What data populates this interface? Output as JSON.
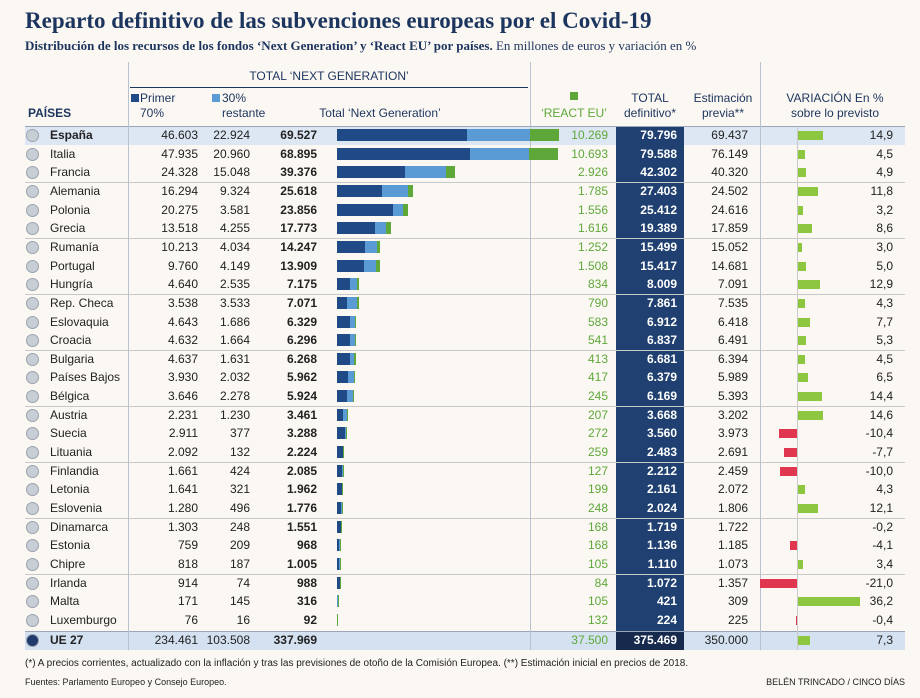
{
  "chart_data": {
    "type": "bar-table",
    "title": "Reparto definitivo de las subvenciones europeas por el Covid-19",
    "subtitle_bold": "Distribución de los recursos de los fondos ‘Next Generation’ y ‘React EU’ por países.",
    "subtitle": "En millones de euros y variación en %",
    "category_header": "PAÍSES",
    "group_header": "TOTAL ‘NEXT GENERATION’",
    "categories": [
      "España",
      "Italia",
      "Francia",
      "Alemania",
      "Polonia",
      "Grecia",
      "Rumanía",
      "Portugal",
      "Hungría",
      "Rep. Checa",
      "Eslovaquia",
      "Croacia",
      "Bulgaria",
      "Países Bajos",
      "Bélgica",
      "Austria",
      "Suecia",
      "Lituania",
      "Finlandia",
      "Letonia",
      "Eslovenia",
      "Dinamarca",
      "Estonia",
      "Chipre",
      "Irlanda",
      "Malta",
      "Luxemburgo"
    ],
    "series": [
      {
        "name": "Primer 70%",
        "color": "#1f4a85",
        "values": [
          46603,
          47935,
          24328,
          16294,
          20275,
          13518,
          10213,
          9760,
          4640,
          3538,
          4643,
          4632,
          4637,
          3930,
          3646,
          2231,
          2911,
          2092,
          1661,
          1641,
          1280,
          1303,
          759,
          818,
          914,
          171,
          76
        ],
        "value_labels": [
          "46.603",
          "47.935",
          "24.328",
          "16.294",
          "20.275",
          "13.518",
          "10.213",
          "9.760",
          "4.640",
          "3.538",
          "4.643",
          "4.632",
          "4.637",
          "3.930",
          "3.646",
          "2.231",
          "2.911",
          "2.092",
          "1.661",
          "1.641",
          "1.280",
          "1.303",
          "759",
          "818",
          "914",
          "171",
          "76"
        ]
      },
      {
        "name": "30% restante",
        "color": "#5b9bd5",
        "values": [
          22924,
          20960,
          15048,
          9324,
          3581,
          4255,
          4034,
          4149,
          2535,
          3533,
          1686,
          1664,
          1631,
          2032,
          2278,
          1230,
          377,
          132,
          424,
          321,
          496,
          248,
          209,
          187,
          74,
          145,
          16
        ],
        "value_labels": [
          "22.924",
          "20.960",
          "15.048",
          "9.324",
          "3.581",
          "4.255",
          "4.034",
          "4.149",
          "2.535",
          "3.533",
          "1.686",
          "1.664",
          "1.631",
          "2.032",
          "2.278",
          "1.230",
          "377",
          "132",
          "424",
          "321",
          "496",
          "248",
          "209",
          "187",
          "74",
          "145",
          "16"
        ]
      },
      {
        "name": "Total ‘Next Generation’",
        "values": [
          69527,
          68895,
          39376,
          25618,
          23856,
          17773,
          14247,
          13909,
          7175,
          7071,
          6329,
          6296,
          6268,
          5962,
          5924,
          3461,
          3288,
          2224,
          2085,
          1962,
          1776,
          1551,
          968,
          1005,
          988,
          316,
          92
        ],
        "value_labels": [
          "69.527",
          "68.895",
          "39.376",
          "25.618",
          "23.856",
          "17.773",
          "14.247",
          "13.909",
          "7.175",
          "7.071",
          "6.329",
          "6.296",
          "6.268",
          "5.962",
          "5.924",
          "3.461",
          "3.288",
          "2.224",
          "2.085",
          "1.962",
          "1.776",
          "1.551",
          "968",
          "1.005",
          "988",
          "316",
          "92"
        ]
      },
      {
        "name": "‘REACT EU’",
        "color": "#5ea83a",
        "values": [
          10269,
          10693,
          2926,
          1785,
          1556,
          1616,
          1252,
          1508,
          834,
          790,
          583,
          541,
          413,
          417,
          245,
          207,
          272,
          259,
          127,
          199,
          248,
          168,
          168,
          105,
          84,
          105,
          132
        ],
        "value_labels": [
          "10.269",
          "10.693",
          "2.926",
          "1.785",
          "1.556",
          "1.616",
          "1.252",
          "1.508",
          "834",
          "790",
          "583",
          "541",
          "413",
          "417",
          "245",
          "207",
          "272",
          "259",
          "127",
          "199",
          "248",
          "168",
          "168",
          "105",
          "84",
          "105",
          "132"
        ]
      },
      {
        "name": "TOTAL definitivo*",
        "values": [
          79796,
          79588,
          42302,
          27403,
          25412,
          19389,
          15499,
          15417,
          8009,
          7861,
          6912,
          6837,
          6681,
          6379,
          6169,
          3668,
          3560,
          2483,
          2212,
          2161,
          2024,
          1719,
          1136,
          1110,
          1072,
          421,
          224
        ],
        "value_labels": [
          "79.796",
          "79.588",
          "42.302",
          "27.403",
          "25.412",
          "19.389",
          "15.499",
          "15.417",
          "8.009",
          "7.861",
          "6.912",
          "6.837",
          "6.681",
          "6.379",
          "6.169",
          "3.668",
          "3.560",
          "2.483",
          "2.212",
          "2.161",
          "2.024",
          "1.719",
          "1.136",
          "1.110",
          "1.072",
          "421",
          "224"
        ]
      },
      {
        "name": "Estimación previa**",
        "values": [
          69437,
          76149,
          40320,
          24502,
          24616,
          17859,
          15052,
          14681,
          7091,
          7535,
          6418,
          6491,
          6394,
          5989,
          5393,
          3202,
          3973,
          2691,
          2459,
          2072,
          1806,
          1722,
          1185,
          1073,
          1357,
          309,
          225
        ],
        "value_labels": [
          "69.437",
          "76.149",
          "40.320",
          "24.502",
          "24.616",
          "17.859",
          "15.052",
          "14.681",
          "7.091",
          "7.535",
          "6.418",
          "6.491",
          "6.394",
          "5.989",
          "5.393",
          "3.202",
          "3.973",
          "2.691",
          "2.459",
          "2.072",
          "1.806",
          "1.722",
          "1.185",
          "1.073",
          "1.357",
          "309",
          "225"
        ]
      },
      {
        "name": "VARIACIÓN En % sobre lo previsto",
        "color": "#8dc63f",
        "negative_color": "#e0364f",
        "values": [
          14.9,
          4.5,
          4.9,
          11.8,
          3.2,
          8.6,
          3,
          5,
          12.9,
          4.3,
          7.7,
          5.3,
          4.5,
          6.5,
          14.4,
          14.6,
          -10.4,
          -7.7,
          -10,
          4.3,
          12.1,
          -0.2,
          -4.1,
          3.4,
          -21,
          36.2,
          -0.4
        ],
        "value_labels": [
          "14,9",
          "4,5",
          "4,9",
          "11,8",
          "3,2",
          "8,6",
          "3,0",
          "5,0",
          "12,9",
          "4,3",
          "7,7",
          "5,3",
          "4,5",
          "6,5",
          "14,4",
          "14,6",
          "-10,4",
          "-7,7",
          "-10,0",
          "4,3",
          "12,1",
          "-0,2",
          "-4,1",
          "3,4",
          "-21,0",
          "36,2",
          "-0,4"
        ]
      }
    ],
    "total": {
      "name": "UE 27",
      "values": [
        234461,
        103508,
        337969,
        37500,
        375469,
        350000,
        7.3
      ],
      "value_labels": [
        "234.461",
        "103.508",
        "337.969",
        "37.500",
        "375.469",
        "350.000",
        "7,3"
      ]
    },
    "footnote": "(*) A precios corrientes, actualizado con la inflación y tras las previsiones de otoño de la Comisión Europea. (**) Estimación inicial en precios de 2018.",
    "source": "Fuentes: Parlamento Europeo y Consejo Europeo.",
    "credit": "BELÉN TRINCADO / CINCO DÍAS"
  }
}
